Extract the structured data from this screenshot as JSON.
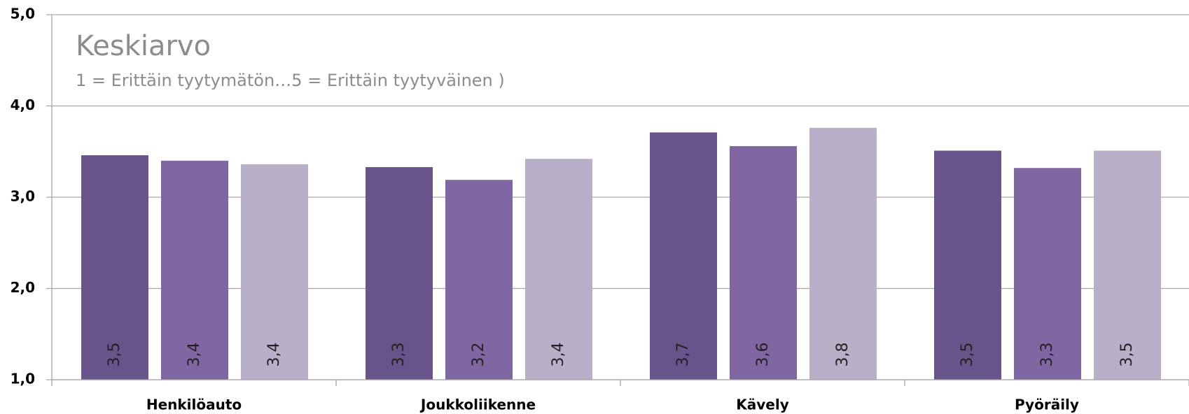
{
  "chart_data": {
    "type": "bar",
    "title": "Keskiarvo",
    "subtitle": "1 = Erittäin tyytymätön…5 = Erittäin tyytyväinen )",
    "categories": [
      "Henkilöauto",
      "Joukkoliikenne",
      "Kävely",
      "Pyöräily"
    ],
    "series": [
      {
        "color": "#68548a",
        "values": [
          3.46,
          3.33,
          3.71,
          3.51
        ],
        "value_labels": [
          "3,5",
          "3,3",
          "3,7",
          "3,5"
        ]
      },
      {
        "color": "#8066a2",
        "values": [
          3.4,
          3.19,
          3.56,
          3.32
        ],
        "value_labels": [
          "3,4",
          "3,2",
          "3,6",
          "3,3"
        ]
      },
      {
        "color": "#b9afc9",
        "values": [
          3.36,
          3.42,
          3.76,
          3.51
        ],
        "value_labels": [
          "3,4",
          "3,4",
          "3,8",
          "3,5"
        ]
      }
    ],
    "ylim": [
      1,
      5
    ],
    "yticks": [
      {
        "value": 1,
        "label": "1,0"
      },
      {
        "value": 2,
        "label": "2,0"
      },
      {
        "value": 3,
        "label": "3,0"
      },
      {
        "value": 4,
        "label": "4,0"
      },
      {
        "value": 5,
        "label": "5,0"
      }
    ],
    "grid": true
  }
}
